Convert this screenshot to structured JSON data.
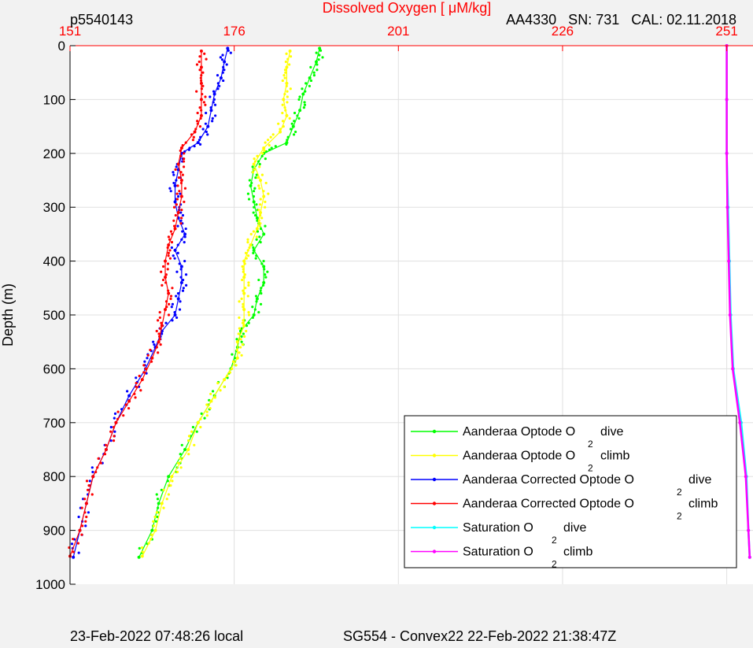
{
  "header": {
    "profile_id": "p5540143",
    "sensor_info": "AA4330   SN: 731   CAL: 02.11.2018"
  },
  "footer": {
    "local_time": "23-Feb-2022 07:48:26 local",
    "mission": "SG554 - Convex22 22-Feb-2022 21:38:47Z"
  },
  "colors": {
    "background": "#f2f2f2",
    "axes_red": "#ff0000",
    "grid": "#e0e0e0",
    "optode_dive": "#00ff00",
    "optode_climb": "#ffff00",
    "corrected_dive": "#0000ff",
    "corrected_climb": "#ff0000",
    "saturation_dive": "#00ffff",
    "saturation_climb": "#ff00ff"
  },
  "chart_data": {
    "type": "scatter",
    "title": "Dissolved Oxygen [ μM/kg]",
    "xlabel": "",
    "ylabel": "Depth (m)",
    "xlim": [
      151,
      255
    ],
    "ylim": [
      1000,
      0
    ],
    "x_axis_position": "top",
    "y_reversed": true,
    "grid": true,
    "legend_position": "bottom-right",
    "x_ticks": [
      151,
      176,
      201,
      226,
      251
    ],
    "y_ticks": [
      0,
      100,
      200,
      300,
      400,
      500,
      600,
      700,
      800,
      900,
      1000
    ],
    "series": [
      {
        "name": "Aanderaa Optode O 2 dive",
        "legend_main": "Aanderaa Optode O",
        "legend_sub": "2",
        "legend_tail": "dive",
        "color_key": "optode_dive",
        "depth": [
          5,
          30,
          60,
          90,
          120,
          150,
          180,
          200,
          230,
          260,
          290,
          320,
          350,
          380,
          410,
          440,
          470,
          500,
          530,
          560,
          600,
          650,
          700,
          750,
          800,
          850,
          900,
          950
        ],
        "oxygen": [
          189.0,
          188.5,
          187.5,
          186.5,
          186.0,
          185.0,
          184.0,
          180.5,
          179.0,
          178.5,
          179.0,
          179.5,
          180.5,
          179.0,
          180.5,
          180.5,
          179.5,
          179.0,
          177.0,
          176.5,
          175.5,
          173.0,
          170.5,
          168.5,
          166.0,
          164.5,
          163.5,
          161.5
        ]
      },
      {
        "name": "Aanderaa Optode O 2 climb",
        "legend_main": "Aanderaa Optode O",
        "legend_sub": "2",
        "legend_tail": "climb",
        "color_key": "optode_climb",
        "depth": [
          10,
          40,
          70,
          100,
          130,
          160,
          190,
          220,
          250,
          280,
          310,
          340,
          370,
          400,
          430,
          460,
          490,
          520,
          550,
          580,
          620,
          660,
          700,
          750,
          800,
          850,
          900,
          948
        ],
        "oxygen": [
          184.5,
          184.0,
          184.0,
          183.5,
          184.0,
          183.0,
          180.5,
          179.0,
          180.0,
          180.5,
          180.0,
          179.5,
          178.5,
          177.5,
          177.5,
          177.5,
          177.5,
          177.5,
          176.5,
          176.5,
          174.5,
          172.5,
          170.5,
          169.0,
          166.5,
          165.0,
          164.0,
          162.0
        ]
      },
      {
        "name": "Aanderaa Corrected Optode O 2 dive",
        "legend_main": "Aanderaa Corrected Optode O",
        "legend_sub": "2",
        "legend_tail": "dive",
        "color_key": "corrected_dive",
        "depth": [
          5,
          30,
          60,
          90,
          120,
          150,
          180,
          200,
          230,
          260,
          290,
          320,
          350,
          380,
          410,
          440,
          470,
          500,
          530,
          560,
          600,
          650,
          700,
          750,
          800,
          850,
          900,
          950
        ],
        "oxygen": [
          175.0,
          174.5,
          174.0,
          173.0,
          172.5,
          172.0,
          170.5,
          168.0,
          167.5,
          167.0,
          167.0,
          167.5,
          168.5,
          167.0,
          168.0,
          168.0,
          167.5,
          167.0,
          165.0,
          164.0,
          162.5,
          160.0,
          158.0,
          156.5,
          154.5,
          153.5,
          152.5,
          151.5
        ]
      },
      {
        "name": "Aanderaa Corrected Optode O 2 climb",
        "legend_main": "Aanderaa Corrected Optode O",
        "legend_sub": "2",
        "legend_tail": "climb",
        "color_key": "corrected_climb",
        "depth": [
          10,
          40,
          70,
          100,
          130,
          160,
          190,
          220,
          250,
          280,
          310,
          340,
          370,
          400,
          430,
          460,
          490,
          520,
          550,
          580,
          620,
          660,
          700,
          750,
          800,
          850,
          900,
          948
        ],
        "oxygen": [
          171.0,
          171.0,
          171.0,
          171.0,
          171.0,
          170.0,
          168.0,
          167.5,
          168.0,
          168.0,
          167.5,
          167.0,
          166.0,
          165.5,
          165.5,
          166.0,
          165.5,
          165.0,
          164.5,
          163.5,
          162.0,
          160.0,
          158.0,
          156.5,
          154.5,
          153.5,
          152.5,
          151.0
        ]
      },
      {
        "name": "Saturation O 2 dive",
        "legend_main": "Saturation O",
        "legend_sub": "2",
        "legend_tail": "dive",
        "color_key": "saturation_dive",
        "depth": [
          0,
          100,
          200,
          300,
          400,
          500,
          600,
          700,
          800,
          900,
          950
        ],
        "oxygen": [
          251.0,
          251.0,
          251.0,
          251.2,
          251.4,
          251.6,
          252.0,
          253.2,
          254.0,
          254.3,
          254.5
        ]
      },
      {
        "name": "Saturation O 2 climb",
        "legend_main": "Saturation O",
        "legend_sub": "2",
        "legend_tail": "climb",
        "color_key": "saturation_climb",
        "depth": [
          0,
          100,
          200,
          300,
          400,
          500,
          600,
          700,
          800,
          900,
          950
        ],
        "oxygen": [
          251.0,
          251.0,
          251.0,
          251.1,
          251.3,
          251.5,
          251.9,
          253.0,
          253.9,
          254.3,
          254.5
        ]
      }
    ]
  }
}
